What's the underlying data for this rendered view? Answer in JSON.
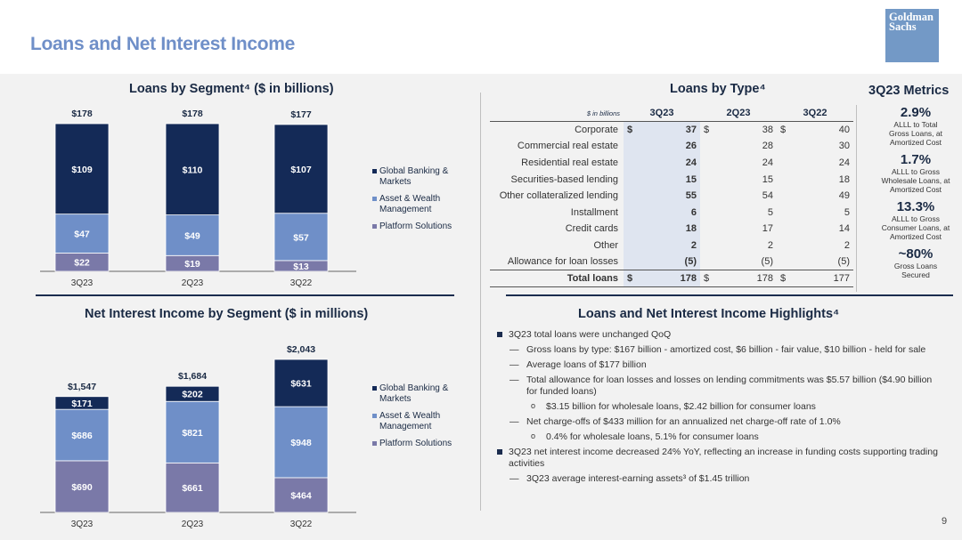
{
  "header": {
    "title": "Loans and Net Interest Income",
    "logo_text": [
      "Goldman",
      "Sachs"
    ],
    "page_number": "9"
  },
  "colors": {
    "global_banking": "#142a57",
    "asset_wealth": "#6f8fc8",
    "platform": "#7a79a8",
    "title_blue": "#6f8fc8",
    "navy": "#1b2c4e"
  },
  "chart_data": [
    {
      "type": "bar",
      "stacked": true,
      "title": "Loans by Segment⁴ ($ in billions)",
      "categories": [
        "3Q23",
        "2Q23",
        "3Q22"
      ],
      "series": [
        {
          "name": "Platform Solutions",
          "values": [
            22,
            19,
            13
          ],
          "labels": [
            "$22",
            "$19",
            "$13"
          ]
        },
        {
          "name": "Asset & Wealth Management",
          "values": [
            47,
            49,
            57
          ],
          "labels": [
            "$47",
            "$49",
            "$57"
          ]
        },
        {
          "name": "Global Banking & Markets",
          "values": [
            109,
            110,
            107
          ],
          "labels": [
            "$109",
            "$110",
            "$107"
          ]
        }
      ],
      "totals": [
        "$178",
        "$178",
        "$177"
      ],
      "legend": [
        "Global Banking & Markets",
        "Asset & Wealth Management",
        "Platform Solutions"
      ],
      "legend_position": "right",
      "ylim": [
        0,
        178
      ]
    },
    {
      "type": "bar",
      "stacked": true,
      "title": "Net Interest Income by Segment ($ in millions)",
      "categories": [
        "3Q23",
        "2Q23",
        "3Q22"
      ],
      "series": [
        {
          "name": "Platform Solutions",
          "values": [
            690,
            661,
            464
          ],
          "labels": [
            "$690",
            "$661",
            "$464"
          ]
        },
        {
          "name": "Asset & Wealth Management",
          "values": [
            686,
            821,
            948
          ],
          "labels": [
            "$686",
            "$821",
            "$948"
          ]
        },
        {
          "name": "Global Banking & Markets",
          "values": [
            171,
            202,
            631
          ],
          "labels": [
            "$171",
            "$202",
            "$631"
          ]
        }
      ],
      "totals": [
        "$1,547",
        "$1,684",
        "$2,043"
      ],
      "legend": [
        "Global Banking & Markets",
        "Asset & Wealth Management",
        "Platform Solutions"
      ],
      "legend_position": "right",
      "ylim": [
        0,
        2043
      ]
    },
    {
      "type": "table",
      "title": "Loans by Type⁴",
      "units_label": "$ in billions",
      "columns": [
        "3Q23",
        "2Q23",
        "3Q22"
      ],
      "rows": [
        {
          "label": "Corporate",
          "values": [
            "37",
            "38",
            "40"
          ],
          "dollar": true
        },
        {
          "label": "Commercial real estate",
          "values": [
            "26",
            "28",
            "30"
          ]
        },
        {
          "label": "Residential real estate",
          "values": [
            "24",
            "24",
            "24"
          ]
        },
        {
          "label": "Securities-based lending",
          "values": [
            "15",
            "15",
            "18"
          ]
        },
        {
          "label": "Other collateralized lending",
          "values": [
            "55",
            "54",
            "49"
          ]
        },
        {
          "label": "Installment",
          "values": [
            "6",
            "5",
            "5"
          ]
        },
        {
          "label": "Credit cards",
          "values": [
            "18",
            "17",
            "14"
          ]
        },
        {
          "label": "Other",
          "values": [
            "2",
            "2",
            "2"
          ]
        },
        {
          "label": "Allowance for loan losses",
          "values": [
            "(5)",
            "(5)",
            "(5)"
          ]
        },
        {
          "label": "Total loans",
          "values": [
            "178",
            "178",
            "177"
          ],
          "dollar": true,
          "total": true
        }
      ]
    }
  ],
  "metrics": {
    "title": "3Q23 Metrics",
    "items": [
      {
        "value": "2.9%",
        "label": [
          "ALLL to Total",
          "Gross Loans, at",
          "Amortized Cost"
        ]
      },
      {
        "value": "1.7%",
        "label": [
          "ALLL to Gross",
          "Wholesale Loans, at",
          "Amortized Cost"
        ]
      },
      {
        "value": "13.3%",
        "label": [
          "ALLL to Gross",
          "Consumer Loans, at",
          "Amortized Cost"
        ]
      },
      {
        "value": "~80%",
        "label": [
          "Gross Loans",
          "Secured"
        ]
      }
    ]
  },
  "highlights": {
    "title": "Loans and Net Interest Income Highlights⁴",
    "items": [
      {
        "level": 0,
        "text": "3Q23 total loans were unchanged QoQ"
      },
      {
        "level": 1,
        "text": "Gross loans by type: $167 billion - amortized cost, $6 billion - fair value, $10 billion - held for sale"
      },
      {
        "level": 1,
        "text": "Average loans of $177 billion"
      },
      {
        "level": 1,
        "text": "Total allowance for loan losses and losses on lending commitments was $5.57 billion ($4.90 billion for funded loans)"
      },
      {
        "level": 2,
        "text": "$3.15 billion for wholesale loans, $2.42 billion for consumer loans"
      },
      {
        "level": 1,
        "text": "Net charge-offs of $433 million for an annualized net charge-off rate of 1.0%"
      },
      {
        "level": 2,
        "text": "0.4% for wholesale loans, 5.1% for consumer loans"
      },
      {
        "level": 0,
        "text": "3Q23 net interest income decreased 24% YoY, reflecting an increase in funding costs supporting trading activities"
      },
      {
        "level": 1,
        "text": "3Q23 average interest-earning assets³ of $1.45 trillion"
      }
    ]
  }
}
